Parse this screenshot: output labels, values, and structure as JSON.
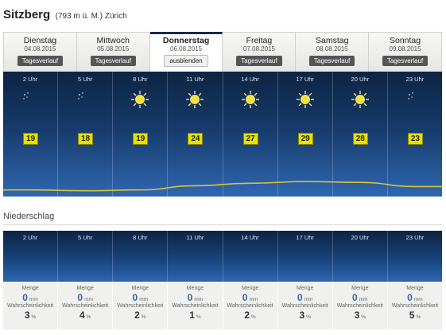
{
  "header": {
    "location": "Sitzberg",
    "sub": "(793 m ü. M.) Zürich"
  },
  "days": [
    {
      "name": "Dienstag",
      "date": "04.08.2015",
      "button": "Tagesverlauf"
    },
    {
      "name": "Mittwoch",
      "date": "05.08.2015",
      "button": "Tagesverlauf"
    },
    {
      "name": "Donnerstag",
      "date": "06.08.2015",
      "button": "ausblenden"
    },
    {
      "name": "Freitag",
      "date": "07.08.2015",
      "button": "Tagesverlauf"
    },
    {
      "name": "Samstag",
      "date": "08.08.2015",
      "button": "Tagesverlauf"
    },
    {
      "name": "Sonntag",
      "date": "09.08.2015",
      "button": "Tagesverlauf"
    }
  ],
  "forecast": [
    {
      "hour": "2 Uhr",
      "icon": "moon-stars-icon",
      "temp": "19"
    },
    {
      "hour": "5 Uhr",
      "icon": "moon-stars-icon",
      "temp": "18"
    },
    {
      "hour": "8 Uhr",
      "icon": "sun-icon",
      "temp": "19"
    },
    {
      "hour": "11 Uhr",
      "icon": "sun-icon",
      "temp": "24"
    },
    {
      "hour": "14 Uhr",
      "icon": "sun-icon",
      "temp": "27"
    },
    {
      "hour": "17 Uhr",
      "icon": "sun-icon",
      "temp": "29"
    },
    {
      "hour": "20 Uhr",
      "icon": "sun-icon",
      "temp": "28"
    },
    {
      "hour": "23 Uhr",
      "icon": "moon-stars-icon",
      "temp": "23"
    }
  ],
  "precipitation": {
    "title": "Niederschlag",
    "amount_label": "Menge",
    "amount_unit": "mm",
    "prob_label": "Wahrscheinlichkeit",
    "prob_unit": "%",
    "items": [
      {
        "hour": "2 Uhr",
        "amount": "0",
        "prob": "3"
      },
      {
        "hour": "5 Uhr",
        "amount": "0",
        "prob": "4"
      },
      {
        "hour": "8 Uhr",
        "amount": "0",
        "prob": "2"
      },
      {
        "hour": "11 Uhr",
        "amount": "0",
        "prob": "1"
      },
      {
        "hour": "14 Uhr",
        "amount": "0",
        "prob": "2"
      },
      {
        "hour": "17 Uhr",
        "amount": "0",
        "prob": "3"
      },
      {
        "hour": "20 Uhr",
        "amount": "0",
        "prob": "3"
      },
      {
        "hour": "23 Uhr",
        "amount": "0",
        "prob": "5"
      }
    ]
  },
  "colors": {
    "panel_dark": "#0d2443",
    "panel_light": "#2f67b0",
    "temp_badge": "#e8e200",
    "sun": "#f2e23a",
    "amount_text": "#3a67a8"
  }
}
